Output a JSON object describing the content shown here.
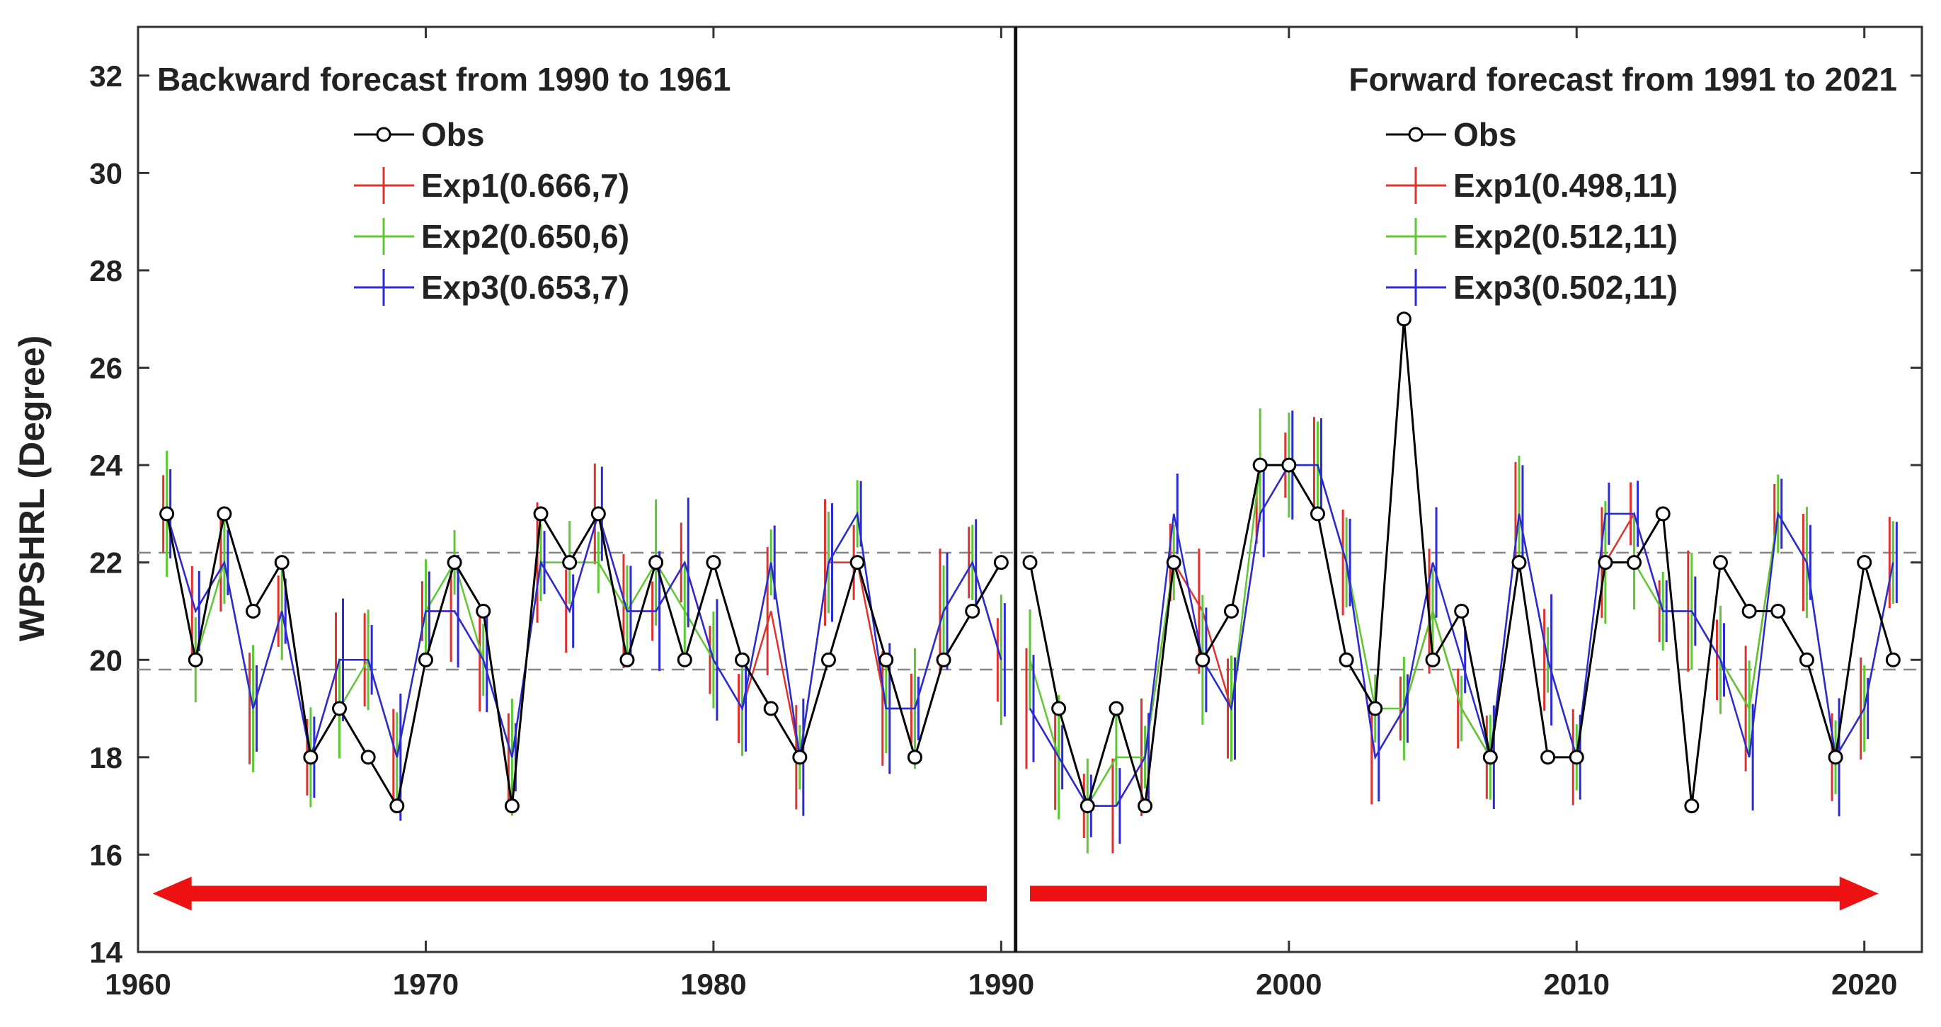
{
  "chart_data": {
    "type": "line",
    "ylabel": "WPSHRL (Degree)",
    "xlim": [
      1960,
      2022
    ],
    "ylim": [
      14,
      33
    ],
    "xticks": [
      1960,
      1970,
      1980,
      1990,
      2000,
      2010,
      2020
    ],
    "yticks": [
      14,
      16,
      18,
      20,
      22,
      24,
      26,
      28,
      30,
      32
    ],
    "reference_lines": [
      22.2,
      19.8
    ],
    "divider_x": 1990.5,
    "series_colors": {
      "obs": "#000000",
      "exp1": "#e0322d",
      "exp2": "#5cc832",
      "exp3": "#2b2bd6"
    },
    "arrow_color": "#ee1111",
    "panels": [
      {
        "id": "backward",
        "title": "Backward  forecast from 1990 to 1961",
        "years": [
          1961,
          1990
        ],
        "arrow_direction": "left",
        "legend": {
          "obs": "Obs",
          "exp1": "Exp1(0.666,7)",
          "exp2": "Exp2(0.650,6)",
          "exp3": "Exp3(0.653,7)"
        },
        "obs": [
          23,
          20,
          23,
          21,
          22,
          18,
          19,
          18,
          17,
          20,
          22,
          21,
          17,
          23,
          22,
          23,
          20,
          22,
          20,
          22,
          20,
          19,
          18,
          20,
          22,
          20,
          18,
          20,
          21,
          22
        ],
        "exp1": [
          23,
          21,
          22,
          19,
          21,
          18,
          20,
          20,
          18,
          21,
          21,
          20,
          18,
          22,
          21,
          23,
          21,
          21,
          22,
          20,
          19,
          21,
          18,
          22,
          22,
          19,
          19,
          21,
          22,
          20
        ],
        "exp2": [
          23,
          20,
          22,
          19,
          21,
          18,
          19,
          20,
          18,
          21,
          22,
          20,
          18,
          22,
          22,
          22,
          21,
          22,
          21,
          20,
          19,
          22,
          18,
          22,
          23,
          19,
          19,
          21,
          22,
          20
        ],
        "exp3": [
          23,
          21,
          22,
          19,
          21,
          18,
          20,
          20,
          18,
          21,
          21,
          20,
          18,
          22,
          21,
          23,
          21,
          21,
          22,
          20,
          19,
          22,
          18,
          22,
          23,
          19,
          19,
          21,
          22,
          20
        ]
      },
      {
        "id": "forward",
        "title": "Forward  forecast from 1991 to 2021",
        "years": [
          1991,
          2021
        ],
        "arrow_direction": "right",
        "legend": {
          "obs": "Obs",
          "exp1": "Exp1(0.498,11)",
          "exp2": "Exp2(0.512,11)",
          "exp3": "Exp3(0.502,11)"
        },
        "obs": [
          22,
          19,
          17,
          19,
          17,
          22,
          20,
          21,
          24,
          24,
          23,
          20,
          19,
          27,
          20,
          21,
          18,
          22,
          18,
          18,
          22,
          22,
          23,
          17,
          22,
          21,
          21,
          20,
          18,
          22,
          20
        ],
        "exp1": [
          19,
          18,
          17,
          17,
          18,
          22,
          21,
          19,
          23,
          24,
          24,
          22,
          18,
          19,
          21,
          19,
          18,
          23,
          20,
          18,
          22,
          23,
          21,
          21,
          20,
          19,
          23,
          22,
          18,
          19,
          22
        ],
        "exp2": [
          20,
          18,
          17,
          18,
          18,
          22,
          20,
          19,
          24,
          24,
          24,
          22,
          19,
          19,
          21,
          19,
          18,
          23,
          20,
          18,
          22,
          22,
          21,
          21,
          20,
          19,
          23,
          22,
          18,
          19,
          22
        ],
        "exp3": [
          19,
          18,
          17,
          17,
          18,
          23,
          20,
          19,
          23,
          24,
          24,
          22,
          18,
          19,
          22,
          20,
          18,
          23,
          20,
          18,
          23,
          23,
          21,
          21,
          20,
          18,
          23,
          22,
          18,
          19,
          22
        ]
      }
    ]
  }
}
